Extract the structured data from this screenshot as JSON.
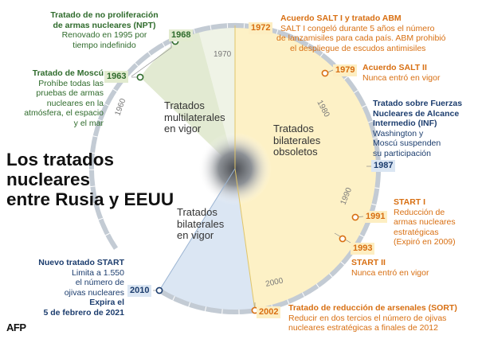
{
  "title_lines": [
    "Los tratados",
    "nucleares",
    "entre Rusia y EEUU"
  ],
  "decade_labels": [
    "1960",
    "1970",
    "1980",
    "1990",
    "2000"
  ],
  "inner_labels": {
    "multilateral": [
      "Tratados",
      "multilaterales",
      "en vigor"
    ],
    "bilateral_obsolete": [
      "Tratados",
      "bilaterales",
      "obsoletos"
    ],
    "bilateral_active": [
      "Tratados",
      "bilaterales",
      "en vigor"
    ]
  },
  "events": {
    "npt": {
      "year": "1968",
      "title": [
        "Tratado de no proliferación",
        "de armas nucleares (NPT)"
      ],
      "body": [
        "Renovado en 1995 por",
        "tiempo indefinido"
      ]
    },
    "moscow": {
      "year": "1963",
      "title": [
        "Tratado de Moscú"
      ],
      "body": [
        "Prohíbe todas las",
        "pruebas de armas",
        "nucleares en la",
        "atmósfera, el espacio",
        "y el mar"
      ]
    },
    "salt1": {
      "year": "1972",
      "title": [
        "Acuerdo SALT I y tratado ABM"
      ],
      "body": [
        "SALT I congeló durante 5 años el número",
        "de lanzamisiles para cada país. ABM prohibió",
        "el despliegue de escudos antimisiles"
      ]
    },
    "salt2": {
      "year": "1979",
      "title": [
        "Acuerdo  SALT II"
      ],
      "body": [
        "Nunca entró en vigor"
      ]
    },
    "inf": {
      "year": "1987",
      "title": [
        "Tratado sobre Fuerzas",
        "Nucleares de Alcance",
        "Intermedio  (INF)"
      ],
      "body": [
        "Washington y",
        "Moscú suspenden",
        "su participación"
      ]
    },
    "start1": {
      "year": "1991",
      "title": [
        "START I"
      ],
      "body": [
        "Reducción de",
        "armas nucleares",
        "estratégicas",
        "(Expiró en 2009)"
      ]
    },
    "start2": {
      "year": "1993",
      "title": [
        "START II"
      ],
      "body": [
        "Nunca entró en vigor"
      ]
    },
    "new_start": {
      "year": "2010",
      "title": [
        "Nuevo tratado START"
      ],
      "body": [
        "Limita a 1.550",
        "el número de",
        "ojivas nucleares"
      ],
      "tail": [
        "Expira el",
        "5 de febrero de 2021"
      ]
    },
    "sort": {
      "year": "2002",
      "title": [
        "Tratado de reducción de arsenales (SORT)"
      ],
      "body": [
        "Reducir en dos tercios el número de ojivas",
        "nucleares estratégicas a finales de 2012"
      ]
    }
  },
  "source": "AFP",
  "colors": {
    "green": "#2f6b2c",
    "orange": "#d86f12",
    "navy": "#1c3d6e",
    "ring": "#c3cbd4"
  }
}
